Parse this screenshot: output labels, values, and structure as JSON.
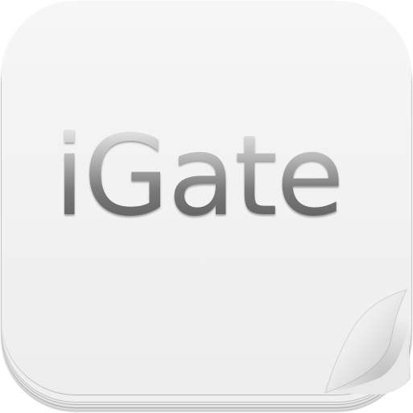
{
  "app_icon": {
    "title": "iGate",
    "colors": {
      "face": "#f3f3f3",
      "text_top": "#f2f2f2",
      "text_bottom": "#5a5a5a",
      "edge": "#d9d9d9"
    },
    "decoration": "page-curl-icon"
  }
}
